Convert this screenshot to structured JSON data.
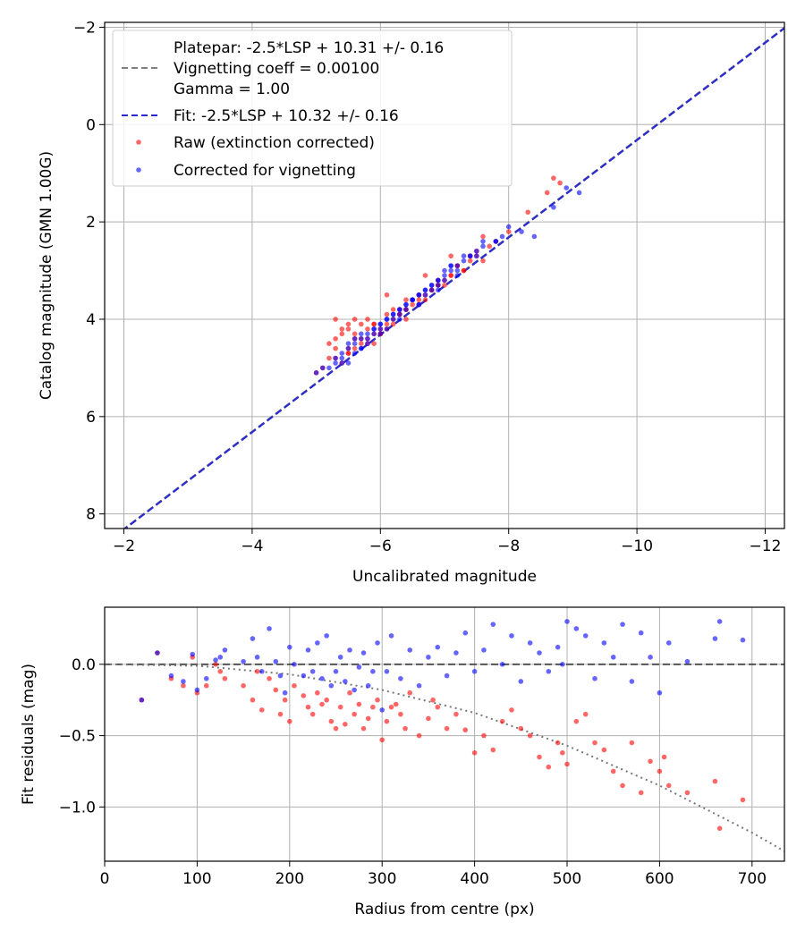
{
  "chart_data": [
    {
      "type": "scatter",
      "xlabel": "Uncalibrated magnitude",
      "ylabel": "Catalog magnitude (GMN 1.00G)",
      "xlim": [
        -1.7,
        -12.3
      ],
      "ylim": [
        8.3,
        -2.1
      ],
      "x_ticks": [
        -2,
        -4,
        -6,
        -8,
        -10,
        -12
      ],
      "x_tick_labels": [
        "−2",
        "−4",
        "−6",
        "−8",
        "−10",
        "−12"
      ],
      "y_ticks": [
        -2,
        0,
        2,
        4,
        6,
        8
      ],
      "y_tick_labels": [
        "−2",
        "0",
        "2",
        "4",
        "6",
        "8"
      ],
      "grid": true,
      "legend": {
        "placement": "upper-left",
        "entries": [
          {
            "lines": [
              "Platepar: -2.5*LSP + 10.31 +/- 0.16",
              "Vignetting coeff = 0.00100",
              "Gamma = 1.00"
            ],
            "style": "dashed-line",
            "color": "#808080"
          },
          {
            "lines": [
              "Fit: -2.5*LSP + 10.32 +/- 0.16"
            ],
            "style": "dashed-line",
            "color": "#2a2ad0"
          },
          {
            "lines": [
              "Raw (extinction corrected)"
            ],
            "style": "marker",
            "color": "#ff0000"
          },
          {
            "lines": [
              "Corrected for vignetting"
            ],
            "style": "marker",
            "color": "#0000ff"
          }
        ]
      },
      "lines": [
        {
          "name": "Platepar",
          "color": "#808080",
          "style": "dashed",
          "slope": 1.0,
          "intercept": 10.31
        },
        {
          "name": "Fit",
          "color": "#2a2ad0",
          "style": "dashed",
          "slope": 1.0,
          "intercept": 10.32
        }
      ],
      "series": [
        {
          "name": "Raw (extinction corrected)",
          "color": "#ff0000",
          "x": [
            -5.0,
            -5.1,
            -5.2,
            -5.3,
            -5.4,
            -5.5,
            -5.6,
            -5.2,
            -5.3,
            -5.4,
            -5.5,
            -5.6,
            -5.7,
            -5.3,
            -5.5,
            -5.7,
            -5.8,
            -5.9,
            -6.0,
            -5.4,
            -5.6,
            -5.8,
            -5.9,
            -6.1,
            -6.2,
            -5.5,
            -5.7,
            -5.9,
            -6.0,
            -6.1,
            -6.3,
            -6.4,
            -5.8,
            -6.0,
            -6.2,
            -6.3,
            -6.4,
            -6.5,
            -6.6,
            -6.1,
            -6.3,
            -6.5,
            -6.6,
            -6.7,
            -6.8,
            -6.9,
            -6.4,
            -6.6,
            -6.8,
            -6.9,
            -7.0,
            -7.1,
            -6.7,
            -6.9,
            -7.1,
            -7.2,
            -7.3,
            -7.4,
            -7.0,
            -7.2,
            -7.4,
            -7.5,
            -7.6,
            -7.3,
            -7.5,
            -7.7,
            -7.8,
            -8.0,
            -8.3,
            -8.7,
            -8.8,
            -8.6,
            -5.3,
            -5.6,
            -5.9,
            -6.2,
            -6.4,
            -5.5,
            -5.8,
            -6.1,
            -6.7,
            -7.1,
            -7.6
          ],
          "y": [
            5.1,
            5.0,
            4.8,
            4.6,
            4.3,
            4.1,
            4.0,
            4.5,
            4.4,
            4.2,
            4.6,
            4.3,
            4.1,
            4.0,
            4.7,
            4.4,
            4.2,
            4.5,
            4.3,
            4.9,
            4.6,
            4.4,
            4.1,
            4.2,
            4.0,
            4.7,
            4.5,
            4.3,
            4.2,
            3.9,
            3.8,
            4.0,
            4.5,
            4.3,
            4.1,
            3.9,
            3.8,
            3.6,
            3.7,
            4.1,
            3.9,
            3.7,
            3.5,
            3.6,
            3.4,
            3.3,
            3.8,
            3.6,
            3.4,
            3.2,
            3.3,
            3.1,
            3.5,
            3.3,
            3.1,
            2.9,
            3.0,
            2.8,
            3.2,
            2.9,
            2.7,
            2.6,
            2.8,
            3.0,
            2.7,
            2.5,
            2.4,
            2.2,
            1.8,
            1.1,
            1.2,
            1.4,
            4.8,
            4.4,
            4.1,
            3.8,
            3.6,
            4.2,
            4.0,
            3.5,
            3.1,
            2.7,
            2.3
          ]
        },
        {
          "name": "Corrected for vignetting",
          "color": "#0000ff",
          "x": [
            -5.2,
            -5.3,
            -5.4,
            -5.5,
            -5.6,
            -5.3,
            -5.4,
            -5.5,
            -5.6,
            -5.7,
            -5.8,
            -5.5,
            -5.6,
            -5.7,
            -5.8,
            -5.9,
            -6.0,
            -5.7,
            -5.8,
            -5.9,
            -6.0,
            -6.1,
            -6.2,
            -5.9,
            -6.0,
            -6.1,
            -6.2,
            -6.3,
            -6.4,
            -6.1,
            -6.2,
            -6.3,
            -6.4,
            -6.5,
            -6.6,
            -6.3,
            -6.4,
            -6.5,
            -6.6,
            -6.7,
            -6.8,
            -6.5,
            -6.6,
            -6.7,
            -6.8,
            -6.9,
            -7.0,
            -6.7,
            -6.8,
            -6.9,
            -7.0,
            -7.1,
            -7.2,
            -6.9,
            -7.0,
            -7.1,
            -7.2,
            -7.3,
            -7.4,
            -7.1,
            -7.3,
            -7.5,
            -7.6,
            -7.4,
            -7.6,
            -7.8,
            -7.9,
            -8.0,
            -8.2,
            -8.4,
            -8.9,
            -9.1,
            -8.7,
            -5.0,
            -5.1,
            -5.4,
            -5.7,
            -6.0,
            -6.3,
            -6.6,
            -6.9,
            -7.2,
            -7.5,
            -7.8
          ],
          "y": [
            5.0,
            4.9,
            4.8,
            4.9,
            4.7,
            4.8,
            4.7,
            4.6,
            4.5,
            4.6,
            4.5,
            4.5,
            4.4,
            4.3,
            4.4,
            4.3,
            4.2,
            4.4,
            4.3,
            4.2,
            4.1,
            4.2,
            4.0,
            4.2,
            4.1,
            4.0,
            3.9,
            3.9,
            3.8,
            4.0,
            3.9,
            3.8,
            3.7,
            3.6,
            3.7,
            3.8,
            3.7,
            3.6,
            3.5,
            3.5,
            3.4,
            3.6,
            3.5,
            3.4,
            3.3,
            3.3,
            3.2,
            3.4,
            3.3,
            3.2,
            3.1,
            3.0,
            3.1,
            3.2,
            3.0,
            2.9,
            2.9,
            2.8,
            2.7,
            2.9,
            2.7,
            2.6,
            2.5,
            2.7,
            2.4,
            2.4,
            2.3,
            2.1,
            2.2,
            2.3,
            1.3,
            1.4,
            1.7,
            5.1,
            5.0,
            4.9,
            4.6,
            4.3,
            4.0,
            3.7,
            3.4,
            3.0,
            2.7,
            2.4
          ]
        }
      ]
    },
    {
      "type": "scatter",
      "xlabel": "Radius from centre (px)",
      "ylabel": "Fit residuals (mag)",
      "xlim": [
        0,
        735
      ],
      "ylim": [
        -1.38,
        0.4
      ],
      "x_ticks": [
        0,
        100,
        200,
        300,
        400,
        500,
        600,
        700
      ],
      "x_tick_labels": [
        "0",
        "100",
        "200",
        "300",
        "400",
        "500",
        "600",
        "700"
      ],
      "y_ticks": [
        0.0,
        -0.5,
        -1.0
      ],
      "y_tick_labels": [
        "0.0",
        "−0.5",
        "−1.0"
      ],
      "grid": true,
      "lines": [
        {
          "name": "zero",
          "style": "dashed",
          "color": "#555555",
          "value": 0.0
        },
        {
          "name": "vignetting model",
          "style": "dotted",
          "color": "#777777",
          "x": [
            0,
            100,
            200,
            300,
            400,
            500,
            600,
            700,
            735
          ],
          "y": [
            0.0,
            -0.01,
            -0.07,
            -0.18,
            -0.34,
            -0.57,
            -0.85,
            -1.18,
            -1.31
          ]
        }
      ],
      "series": [
        {
          "name": "Raw (extinction corrected)",
          "color": "#ff0000",
          "x": [
            40,
            57,
            72,
            85,
            95,
            100,
            110,
            120,
            125,
            130,
            150,
            160,
            165,
            170,
            178,
            185,
            190,
            195,
            200,
            205,
            215,
            220,
            225,
            230,
            235,
            240,
            245,
            250,
            255,
            260,
            265,
            270,
            275,
            280,
            285,
            290,
            295,
            300,
            305,
            310,
            315,
            320,
            325,
            330,
            340,
            350,
            355,
            360,
            370,
            380,
            390,
            400,
            410,
            420,
            430,
            440,
            450,
            460,
            470,
            480,
            490,
            495,
            500,
            510,
            520,
            530,
            540,
            550,
            560,
            570,
            580,
            590,
            600,
            605,
            610,
            630,
            660,
            665,
            690
          ],
          "y": [
            -0.25,
            0.08,
            -0.1,
            -0.15,
            0.05,
            -0.2,
            -0.15,
            0.0,
            -0.05,
            -0.1,
            -0.15,
            -0.25,
            -0.05,
            -0.32,
            -0.1,
            -0.18,
            -0.35,
            -0.25,
            -0.4,
            -0.15,
            -0.22,
            -0.3,
            -0.35,
            -0.2,
            -0.28,
            -0.25,
            -0.4,
            -0.45,
            -0.3,
            -0.42,
            -0.2,
            -0.35,
            -0.28,
            -0.45,
            -0.38,
            -0.3,
            -0.25,
            -0.53,
            -0.4,
            -0.3,
            -0.28,
            -0.35,
            -0.45,
            -0.2,
            -0.5,
            -0.38,
            -0.25,
            -0.3,
            -0.45,
            -0.35,
            -0.46,
            -0.62,
            -0.5,
            -0.6,
            -0.4,
            -0.32,
            -0.45,
            -0.5,
            -0.65,
            -0.72,
            -0.55,
            -0.62,
            -0.7,
            -0.4,
            -0.35,
            -0.55,
            -0.6,
            -0.75,
            -0.85,
            -0.55,
            -0.9,
            -0.68,
            -0.75,
            -0.65,
            -0.85,
            -0.9,
            -0.82,
            -1.15,
            -0.95
          ]
        },
        {
          "name": "Corrected for vignetting",
          "color": "#0000ff",
          "x": [
            40,
            57,
            72,
            85,
            95,
            100,
            110,
            120,
            125,
            130,
            150,
            160,
            165,
            170,
            178,
            185,
            190,
            195,
            200,
            205,
            215,
            220,
            225,
            230,
            235,
            240,
            245,
            250,
            255,
            260,
            265,
            270,
            275,
            280,
            285,
            290,
            295,
            300,
            305,
            310,
            320,
            330,
            340,
            350,
            360,
            370,
            380,
            390,
            400,
            410,
            420,
            430,
            440,
            450,
            460,
            470,
            480,
            490,
            495,
            500,
            510,
            520,
            530,
            540,
            550,
            560,
            570,
            580,
            590,
            600,
            610,
            630,
            660,
            665,
            690
          ],
          "y": [
            -0.25,
            0.08,
            -0.08,
            -0.12,
            0.07,
            -0.18,
            -0.1,
            0.03,
            0.05,
            0.1,
            0.02,
            0.18,
            0.05,
            -0.05,
            0.25,
            0.02,
            -0.08,
            -0.2,
            0.12,
            0.0,
            -0.08,
            0.1,
            -0.05,
            0.15,
            -0.1,
            0.2,
            -0.15,
            -0.05,
            0.05,
            -0.12,
            0.1,
            -0.18,
            -0.02,
            0.08,
            -0.15,
            -0.05,
            0.15,
            -0.32,
            -0.05,
            0.2,
            -0.1,
            0.1,
            -0.15,
            0.05,
            0.12,
            -0.08,
            0.08,
            0.22,
            -0.05,
            0.1,
            0.28,
            0.0,
            0.2,
            -0.12,
            0.15,
            0.08,
            -0.05,
            0.12,
            0.0,
            0.3,
            0.25,
            0.2,
            -0.1,
            0.15,
            0.05,
            0.28,
            -0.12,
            0.22,
            0.05,
            -0.2,
            0.15,
            0.02,
            0.18,
            0.3,
            0.17
          ]
        }
      ]
    }
  ]
}
